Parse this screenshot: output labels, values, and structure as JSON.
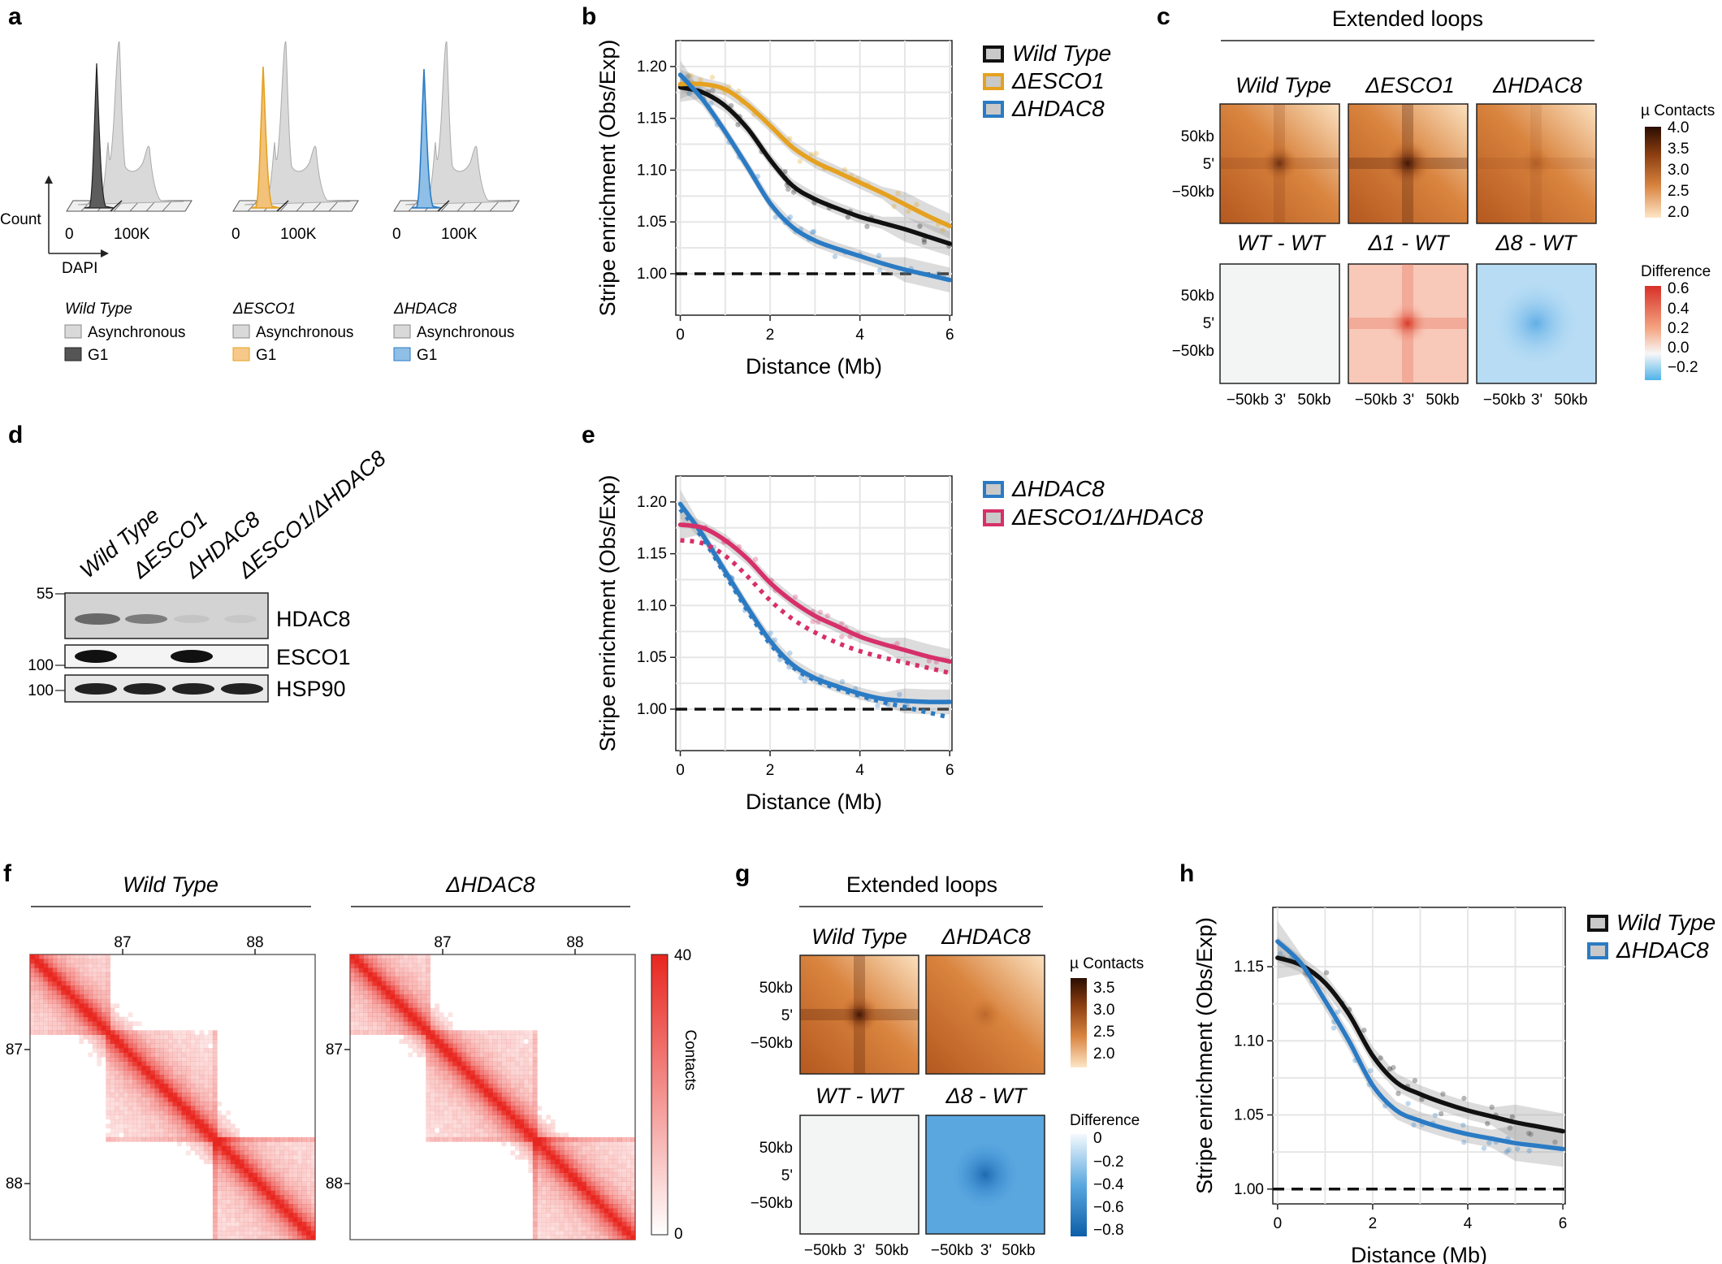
{
  "colors": {
    "wt": "#111111",
    "esco1": "#E5A11F",
    "hdac8": "#2B7BC4",
    "double": "#D6306A",
    "ribbon": "#bdbdbd",
    "heat": "#E8261F"
  },
  "panels": {
    "a": {
      "letter": "a",
      "axis_y": "Count",
      "axis_x": "DAPI",
      "ticks": [
        "0",
        "100K"
      ],
      "groups": [
        {
          "title": "Wild Type",
          "async": "Asynchronous",
          "g1": "G1",
          "color": "#555555"
        },
        {
          "title": "ΔESCO1",
          "async": "Asynchronous",
          "g1": "G1",
          "color": "#E5A11F"
        },
        {
          "title": "ΔHDAC8",
          "async": "Asynchronous",
          "g1": "G1",
          "color": "#2B7BC4"
        }
      ]
    },
    "b": {
      "letter": "b"
    },
    "c": {
      "letter": "c",
      "title": "Extended loops",
      "top_labels": [
        "Wild Type",
        "ΔESCO1",
        "ΔHDAC8"
      ],
      "bottom_labels": [
        "WT - WT",
        "Δ1 - WT",
        "Δ8 - WT"
      ],
      "y_ticks": [
        "50kb",
        "5'",
        "−50kb"
      ],
      "x_ticks": [
        "−50kb",
        "3'",
        "50kb"
      ],
      "scale1_title": "µ Contacts",
      "scale1_ticks": [
        "4.0",
        "3.5",
        "3.0",
        "2.5",
        "2.0"
      ],
      "scale2_title": "Difference",
      "scale2_ticks": [
        "0.6",
        "0.4",
        "0.2",
        "0.0",
        "−0.2"
      ]
    },
    "d": {
      "letter": "d",
      "lanes": [
        "Wild Type",
        "ΔESCO1",
        "ΔHDAC8",
        "ΔESCO1/ΔHDAC8"
      ],
      "blots": [
        "HDAC8",
        "ESCO1",
        "HSP90"
      ],
      "markers": [
        "55",
        "100",
        "100"
      ]
    },
    "e": {
      "letter": "e"
    },
    "f": {
      "letter": "f",
      "maps": [
        {
          "title": "Wild Type",
          "x_ticks": [
            "87",
            "88"
          ],
          "y_ticks": [
            "87",
            "88"
          ]
        },
        {
          "title": "ΔHDAC8",
          "x_ticks": [
            "87",
            "88"
          ],
          "y_ticks": [
            "87",
            "88"
          ]
        }
      ],
      "scale_title": "Contacts",
      "scale_ticks": [
        "40",
        "0"
      ]
    },
    "g": {
      "letter": "g",
      "title": "Extended loops",
      "top_labels": [
        "Wild Type",
        "ΔHDAC8"
      ],
      "bottom_labels": [
        "WT - WT",
        "Δ8 - WT"
      ],
      "y_ticks": [
        "50kb",
        "5'",
        "−50kb"
      ],
      "x_ticks": [
        "−50kb",
        "3'",
        "50kb"
      ],
      "scale1_title": "µ Contacts",
      "scale1_ticks": [
        "3.5",
        "3.0",
        "2.5",
        "2.0"
      ],
      "scale2_title": "Difference",
      "scale2_ticks": [
        "0",
        "−0.2",
        "−0.4",
        "−0.6",
        "−0.8"
      ]
    },
    "h": {
      "letter": "h"
    }
  },
  "chart_data": [
    {
      "id": "b",
      "type": "line",
      "title": "",
      "xlabel": "Distance (Mb)",
      "ylabel": "Stripe enrichment (Obs/Exp)",
      "xlim": [
        -0.1,
        6.05
      ],
      "ylim": [
        0.96,
        1.225
      ],
      "x_ticks": [
        0,
        2,
        4,
        6
      ],
      "y_ticks": [
        1.0,
        1.05,
        1.1,
        1.15,
        1.2
      ],
      "y_tick_labels": [
        "1.00",
        "1.05",
        "1.10",
        "1.15",
        "1.20"
      ],
      "reference_line": 1.0,
      "legend_position": "top-right",
      "series": [
        {
          "name": "Wild Type",
          "color": "#111111",
          "dashed": false,
          "x": [
            0,
            0.5,
            1,
            1.5,
            2,
            2.5,
            3,
            3.5,
            4,
            4.5,
            5,
            5.5,
            6
          ],
          "values": [
            1.18,
            1.175,
            1.162,
            1.14,
            1.11,
            1.085,
            1.072,
            1.063,
            1.055,
            1.049,
            1.043,
            1.036,
            1.029
          ]
        },
        {
          "name": "ΔESCO1",
          "color": "#E5A11F",
          "dashed": false,
          "x": [
            0,
            0.5,
            1,
            1.5,
            2,
            2.5,
            3,
            3.5,
            4,
            4.5,
            5,
            5.5,
            6
          ],
          "values": [
            1.183,
            1.183,
            1.178,
            1.163,
            1.143,
            1.122,
            1.108,
            1.098,
            1.088,
            1.078,
            1.067,
            1.056,
            1.046
          ]
        },
        {
          "name": "ΔHDAC8",
          "color": "#2B7BC4",
          "dashed": false,
          "x": [
            0,
            0.5,
            1,
            1.5,
            2,
            2.5,
            3,
            3.5,
            4,
            4.5,
            5,
            5.5,
            6
          ],
          "values": [
            1.192,
            1.168,
            1.137,
            1.103,
            1.068,
            1.045,
            1.032,
            1.024,
            1.017,
            1.01,
            1.004,
            0.999,
            0.994
          ]
        }
      ]
    },
    {
      "id": "e",
      "type": "line",
      "title": "",
      "xlabel": "Distance (Mb)",
      "ylabel": "Stripe enrichment (Obs/Exp)",
      "xlim": [
        -0.1,
        6.05
      ],
      "ylim": [
        0.96,
        1.225
      ],
      "x_ticks": [
        0,
        2,
        4,
        6
      ],
      "y_ticks": [
        1.0,
        1.05,
        1.1,
        1.15,
        1.2
      ],
      "y_tick_labels": [
        "1.00",
        "1.05",
        "1.10",
        "1.15",
        "1.20"
      ],
      "reference_line": 1.0,
      "legend_position": "top-right",
      "series": [
        {
          "name": "ΔHDAC8",
          "color": "#2B7BC4",
          "dashed": false,
          "x": [
            0,
            0.5,
            1,
            1.5,
            2,
            2.5,
            3,
            3.5,
            4,
            4.5,
            5,
            5.5,
            6
          ],
          "values": [
            1.198,
            1.168,
            1.133,
            1.098,
            1.066,
            1.043,
            1.03,
            1.022,
            1.015,
            1.01,
            1.008,
            1.007,
            1.007
          ]
        },
        {
          "name": "ΔHDAC8 (dotted)",
          "color": "#2B7BC4",
          "dashed": true,
          "in_legend": false,
          "x": [
            0,
            0.5,
            1,
            1.5,
            2,
            2.5,
            3,
            3.5,
            4,
            4.5,
            5,
            5.5,
            6
          ],
          "values": [
            1.193,
            1.165,
            1.13,
            1.095,
            1.063,
            1.041,
            1.028,
            1.02,
            1.013,
            1.007,
            1.002,
            0.997,
            0.992
          ]
        },
        {
          "name": "ΔESCO1/ΔHDAC8",
          "color": "#D6306A",
          "dashed": false,
          "x": [
            0,
            0.5,
            1,
            1.5,
            2,
            2.5,
            3,
            3.5,
            4,
            4.5,
            5,
            5.5,
            6
          ],
          "values": [
            1.178,
            1.175,
            1.163,
            1.145,
            1.122,
            1.104,
            1.09,
            1.08,
            1.07,
            1.063,
            1.057,
            1.051,
            1.046
          ]
        },
        {
          "name": "ΔESCO1/ΔHDAC8 (dotted)",
          "color": "#D6306A",
          "dashed": true,
          "in_legend": false,
          "x": [
            0,
            0.5,
            1,
            1.5,
            2,
            2.5,
            3,
            3.5,
            4,
            4.5,
            5,
            5.5,
            6
          ],
          "values": [
            1.163,
            1.16,
            1.148,
            1.128,
            1.105,
            1.087,
            1.074,
            1.064,
            1.056,
            1.05,
            1.045,
            1.04,
            1.035
          ]
        }
      ]
    },
    {
      "id": "h",
      "type": "line",
      "title": "",
      "xlabel": "Distance (Mb)",
      "ylabel": "Stripe enrichment (Obs/Exp)",
      "xlim": [
        -0.1,
        6.05
      ],
      "ylim": [
        0.99,
        1.19
      ],
      "x_ticks": [
        0,
        2,
        4,
        6
      ],
      "y_ticks": [
        1.0,
        1.05,
        1.1,
        1.15
      ],
      "y_tick_labels": [
        "1.00",
        "1.05",
        "1.10",
        "1.15"
      ],
      "reference_line": 1.0,
      "legend_position": "top-right",
      "series": [
        {
          "name": "Wild Type",
          "color": "#111111",
          "dashed": false,
          "x": [
            0,
            0.5,
            1,
            1.5,
            2,
            2.5,
            3,
            3.5,
            4,
            4.5,
            5,
            5.5,
            6
          ],
          "values": [
            1.156,
            1.151,
            1.139,
            1.118,
            1.09,
            1.072,
            1.064,
            1.058,
            1.053,
            1.049,
            1.045,
            1.042,
            1.039
          ]
        },
        {
          "name": "ΔHDAC8",
          "color": "#2B7BC4",
          "dashed": false,
          "x": [
            0,
            0.5,
            1,
            1.5,
            2,
            2.5,
            3,
            3.5,
            4,
            4.5,
            5,
            5.5,
            6
          ],
          "values": [
            1.167,
            1.152,
            1.127,
            1.1,
            1.07,
            1.053,
            1.046,
            1.041,
            1.037,
            1.034,
            1.031,
            1.029,
            1.027
          ]
        }
      ]
    }
  ]
}
